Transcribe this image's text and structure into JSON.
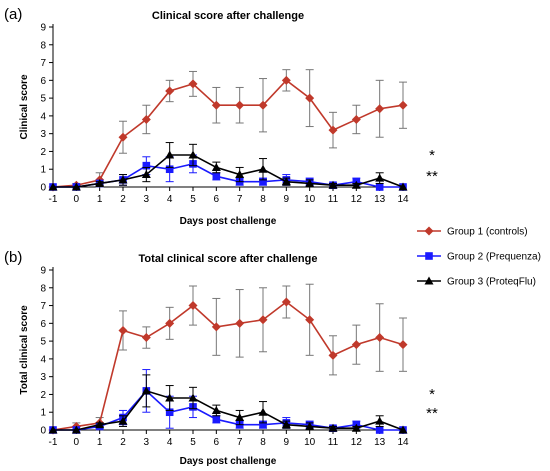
{
  "legend": [
    {
      "name": "Group 1 (controls)",
      "color": "#c0392b",
      "marker": "diamond"
    },
    {
      "name": "Group 2 (Prequenza)",
      "color": "#1a1aff",
      "marker": "square"
    },
    {
      "name": "Group 3 (ProteqFlu)",
      "color": "#000000",
      "marker": "triangle"
    }
  ],
  "chart_data": [
    {
      "type": "line",
      "panel_label": "(a)",
      "title": "Clinical score after challenge",
      "xlabel": "Days post challenge",
      "ylabel": "Clinical score",
      "x": [
        -1,
        0,
        1,
        2,
        3,
        4,
        5,
        6,
        7,
        8,
        9,
        10,
        11,
        12,
        13,
        14
      ],
      "xlim": [
        -1,
        14
      ],
      "ylim": [
        0,
        9
      ],
      "yticks": [
        0,
        1,
        2,
        3,
        4,
        5,
        6,
        7,
        8,
        9
      ],
      "significance": [
        "*",
        "**"
      ],
      "series": [
        {
          "name": "Group 1 (controls)",
          "color": "#c0392b",
          "marker": "diamond",
          "values": [
            0,
            0.1,
            0.4,
            2.8,
            3.8,
            5.4,
            5.8,
            4.6,
            4.6,
            4.6,
            6.0,
            5.0,
            3.2,
            3.8,
            4.4,
            4.6
          ],
          "errors": [
            0,
            0.1,
            0.4,
            0.9,
            0.8,
            0.6,
            0.7,
            1.0,
            1.0,
            1.5,
            0.6,
            1.6,
            1.0,
            0.8,
            1.6,
            1.3
          ]
        },
        {
          "name": "Group 2 (Prequenza)",
          "color": "#1a1aff",
          "marker": "square",
          "values": [
            0,
            0,
            0.2,
            0.4,
            1.2,
            1.0,
            1.3,
            0.6,
            0.3,
            0.3,
            0.4,
            0.3,
            0.1,
            0.3,
            0,
            0
          ],
          "errors": [
            0,
            0,
            0.1,
            0.3,
            0.5,
            0.7,
            0.5,
            0.2,
            0.2,
            0.2,
            0.3,
            0.2,
            0.1,
            0.2,
            0,
            0
          ]
        },
        {
          "name": "Group 3 (ProteqFlu)",
          "color": "#000000",
          "marker": "triangle",
          "values": [
            0,
            0,
            0.2,
            0.4,
            0.7,
            1.8,
            1.8,
            1.1,
            0.7,
            1.0,
            0.3,
            0.2,
            0.1,
            0.1,
            0.5,
            0
          ],
          "errors": [
            0,
            0,
            0.1,
            0.3,
            0.4,
            0.7,
            0.6,
            0.3,
            0.4,
            0.6,
            0.2,
            0.2,
            0.1,
            0.1,
            0.3,
            0
          ]
        }
      ]
    },
    {
      "type": "line",
      "panel_label": "(b)",
      "title": "Total clinical score after challenge",
      "xlabel": "Days post challenge",
      "ylabel": "Total clinical score",
      "x": [
        -1,
        0,
        1,
        2,
        3,
        4,
        5,
        6,
        7,
        8,
        9,
        10,
        11,
        12,
        13,
        14
      ],
      "xlim": [
        -1,
        14
      ],
      "ylim": [
        0,
        9
      ],
      "yticks": [
        0,
        1,
        2,
        3,
        4,
        5,
        6,
        7,
        8,
        9
      ],
      "significance": [
        "*",
        "**"
      ],
      "series": [
        {
          "name": "Group 1 (controls)",
          "color": "#c0392b",
          "marker": "diamond",
          "values": [
            0,
            0.2,
            0.4,
            5.6,
            5.2,
            6.0,
            7.0,
            5.8,
            6.0,
            6.2,
            7.2,
            6.2,
            4.2,
            4.8,
            5.2,
            4.8
          ],
          "errors": [
            0,
            0.2,
            0.3,
            1.1,
            0.6,
            0.9,
            1.1,
            1.6,
            1.9,
            1.8,
            0.9,
            2.0,
            1.1,
            1.1,
            1.9,
            1.5
          ]
        },
        {
          "name": "Group 2 (Prequenza)",
          "color": "#1a1aff",
          "marker": "square",
          "values": [
            0,
            0,
            0.2,
            0.7,
            2.2,
            1.0,
            1.3,
            0.6,
            0.3,
            0.3,
            0.4,
            0.3,
            0.1,
            0.3,
            0,
            0
          ],
          "errors": [
            0,
            0,
            0.1,
            0.4,
            1.2,
            0.9,
            0.6,
            0.2,
            0.2,
            0.2,
            0.3,
            0.2,
            0.1,
            0.2,
            0,
            0
          ]
        },
        {
          "name": "Group 3 (ProteqFlu)",
          "color": "#000000",
          "marker": "triangle",
          "values": [
            0,
            0,
            0.3,
            0.5,
            2.2,
            1.8,
            1.8,
            1.1,
            0.7,
            1.0,
            0.3,
            0.2,
            0.1,
            0.1,
            0.5,
            0
          ],
          "errors": [
            0,
            0,
            0.1,
            0.3,
            0.9,
            0.7,
            0.6,
            0.3,
            0.4,
            0.6,
            0.2,
            0.2,
            0.1,
            0.1,
            0.3,
            0
          ]
        }
      ]
    }
  ]
}
